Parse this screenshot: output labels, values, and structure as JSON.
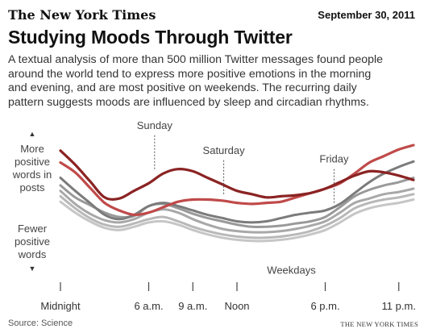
{
  "masthead": "The New York Times",
  "date": "September 30, 2011",
  "headline": "Studying Moods Through Twitter",
  "deck_lines": [
    "A textual analysis of more than 500 million Twitter messages found people",
    "around the world tend to express more positive emotions in the morning",
    "and evening, and are most positive on weekends. The recurring daily",
    "pattern suggests moods are influenced by sleep and circadian rhythms."
  ],
  "source": "Source: Science",
  "credit": "THE NEW YORK TIMES",
  "chart_data": {
    "type": "line",
    "xlabel": "",
    "ylabel": "",
    "y_axis_top_label": [
      "More",
      "positive",
      "words in",
      "posts"
    ],
    "y_axis_bottom_label": [
      "Fewer",
      "positive",
      "words"
    ],
    "x_ticks": [
      {
        "hour": 0,
        "label": "Midnight"
      },
      {
        "hour": 6,
        "label": "6 a.m."
      },
      {
        "hour": 9,
        "label": "9 a.m."
      },
      {
        "hour": 12,
        "label": "Noon"
      },
      {
        "hour": 18,
        "label": "6 p.m."
      },
      {
        "hour": 23,
        "label": "11 p.m."
      }
    ],
    "xlim": [
      0,
      24
    ],
    "ylim": [
      0,
      100
    ],
    "grid": false,
    "x": [
      0,
      1,
      2,
      3,
      4,
      5,
      6,
      7,
      8,
      9,
      10,
      11,
      12,
      13,
      14,
      15,
      16,
      17,
      18,
      19,
      20,
      21,
      22,
      23,
      24
    ],
    "series": [
      {
        "name": "Sunday",
        "color": "#8b2323",
        "width": 3.2,
        "values": [
          95,
          82,
          67,
          52,
          51,
          58,
          65,
          74,
          78,
          76,
          70,
          64,
          58,
          55,
          52,
          53,
          54,
          56,
          60,
          66,
          72,
          76,
          75,
          72,
          68
        ]
      },
      {
        "name": "Saturday",
        "color": "#c04a4a",
        "width": 3.2,
        "values": [
          84,
          75,
          61,
          47,
          40,
          36,
          38,
          43,
          48,
          50,
          50,
          49,
          47,
          46,
          47,
          48,
          52,
          56,
          60,
          65,
          74,
          84,
          90,
          96,
          100
        ]
      },
      {
        "name": "Friday",
        "color": "#7b7b7b",
        "width": 3,
        "values": [
          70,
          58,
          47,
          36,
          32,
          36,
          44,
          47,
          44,
          40,
          36,
          33,
          30,
          29,
          30,
          33,
          36,
          38,
          40,
          46,
          56,
          66,
          74,
          80,
          85
        ]
      },
      {
        "name": "",
        "color": "#999999",
        "width": 3,
        "values": [
          63,
          52,
          45,
          38,
          34,
          35,
          44,
          46,
          42,
          37,
          33,
          30,
          27,
          25,
          25,
          26,
          28,
          30,
          34,
          43,
          53,
          59,
          63,
          66,
          70
        ]
      },
      {
        "name": "",
        "color": "#a8a8a8",
        "width": 3,
        "values": [
          58,
          46,
          37,
          31,
          29,
          32,
          38,
          41,
          38,
          32,
          27,
          23,
          21,
          20,
          20,
          21,
          23,
          26,
          30,
          38,
          47,
          51,
          55,
          57,
          60
        ]
      },
      {
        "name": "",
        "color": "#b8b8b8",
        "width": 3,
        "values": [
          53,
          42,
          33,
          27,
          25,
          28,
          32,
          34,
          30,
          25,
          21,
          18,
          16,
          15,
          15,
          16,
          18,
          21,
          26,
          33,
          42,
          47,
          50,
          52,
          55
        ]
      },
      {
        "name": "",
        "color": "#c6c6c6",
        "width": 3,
        "values": [
          48,
          38,
          30,
          24,
          22,
          25,
          29,
          30,
          27,
          22,
          18,
          15,
          13,
          12,
          12,
          13,
          15,
          18,
          22,
          29,
          37,
          42,
          45,
          47,
          50
        ]
      }
    ],
    "annotations": [
      {
        "label": "Sunday",
        "hour": 6.4,
        "y": 75,
        "text_above": true
      },
      {
        "label": "Saturday",
        "hour": 11.1,
        "y": 52,
        "text_above": true
      },
      {
        "label": "Friday",
        "hour": 18.6,
        "y": 44,
        "text_above": true
      },
      {
        "label": "Weekdays",
        "hour": 15.7,
        "y": 10,
        "text_above": false
      }
    ]
  }
}
